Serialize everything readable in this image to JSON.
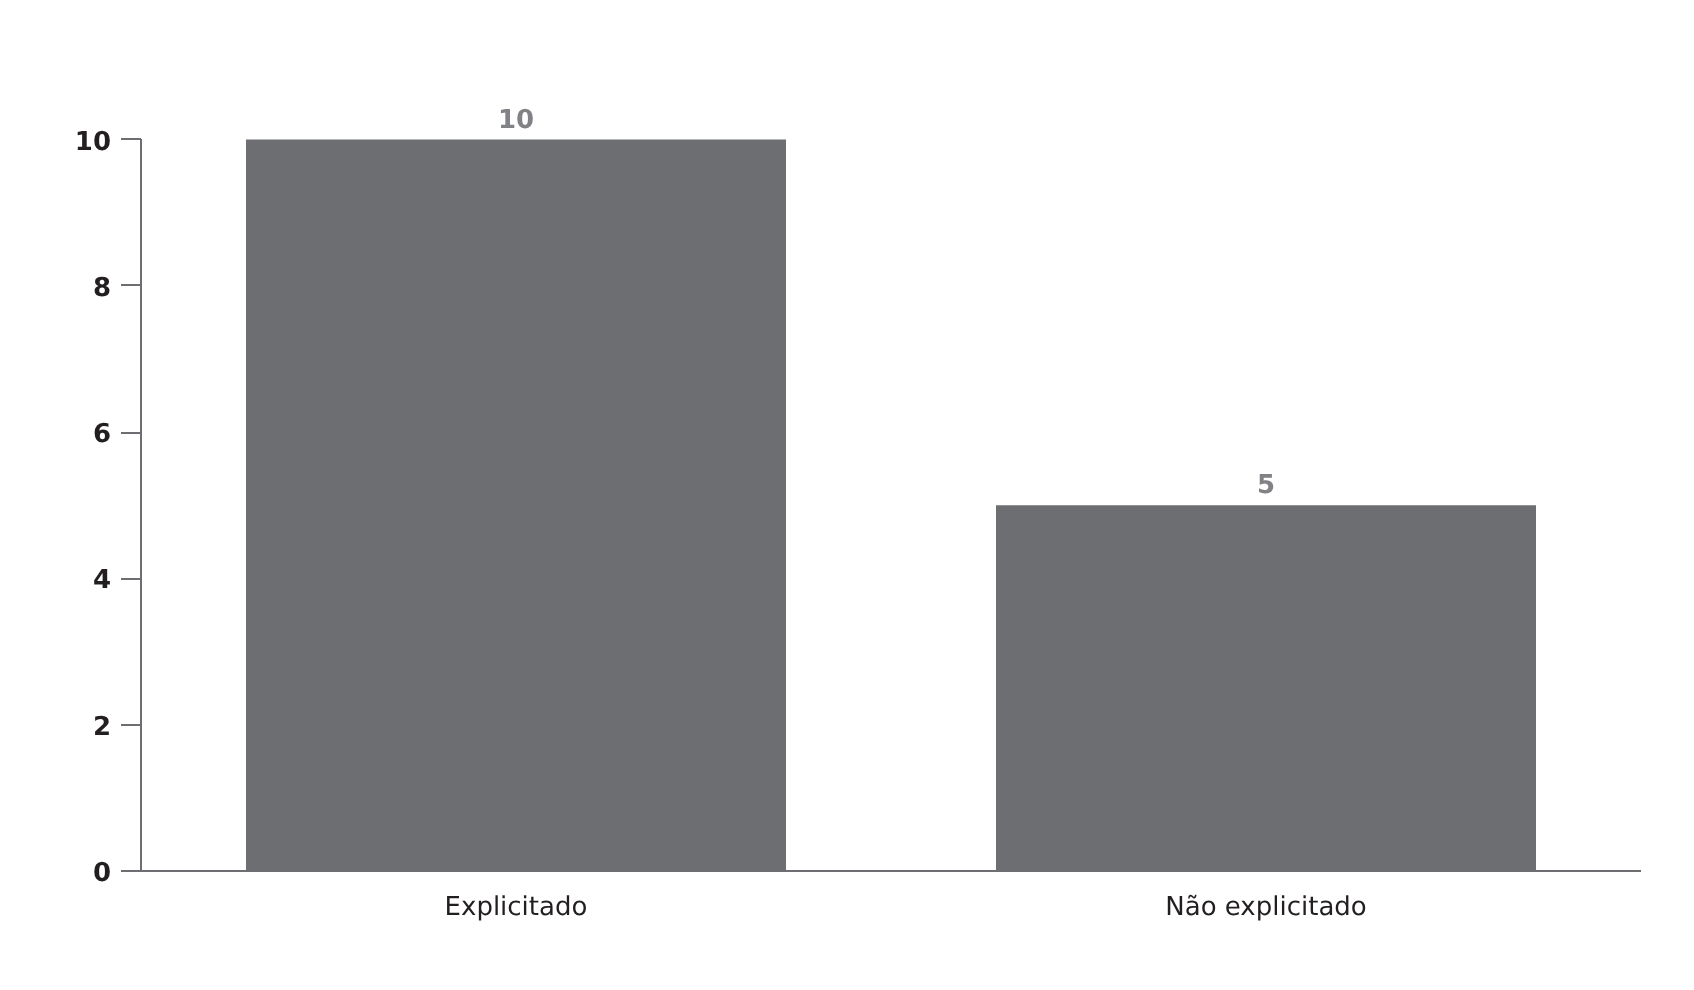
{
  "chart_data": {
    "type": "bar",
    "categories": [
      "Explicitado",
      "Não explicitado"
    ],
    "values": [
      10,
      5
    ],
    "color": "#6d6e71",
    "ylim": [
      0,
      10
    ],
    "yticks": [
      0,
      2,
      4,
      6,
      8,
      10
    ],
    "grid": false,
    "data_labels": true
  }
}
